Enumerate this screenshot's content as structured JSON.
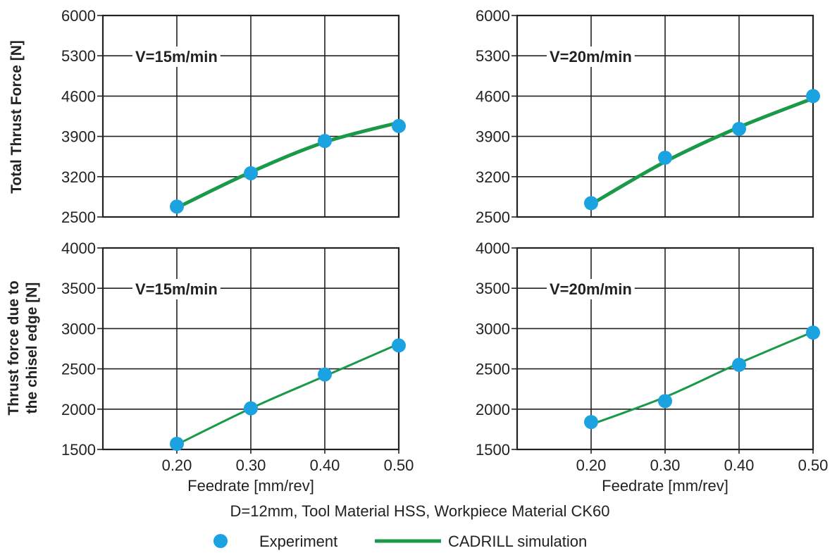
{
  "colors": {
    "marker": "#1aa3e0",
    "line": "#1a9a48",
    "frame": "#222222",
    "grid": "#222222"
  },
  "shared": {
    "xlabel": "Feedrate [mm/rev]",
    "caption": "D=12mm, Tool Material HSS, Workpiece Material CK60",
    "legend": {
      "experiment_label": "Experiment",
      "simulation_label": "CADRILL simulation"
    },
    "row_labels": {
      "top": [
        "Total Thrust Force [N]"
      ],
      "bottom": [
        "Thrust force due to",
        "the chisel edge [N]"
      ]
    }
  },
  "chart_data": [
    {
      "type": "line",
      "annotation": "V=15m/min",
      "xlim": [
        0.1,
        0.5
      ],
      "ylim": [
        2500,
        6000
      ],
      "xticks": [
        "0.20",
        "0.30",
        "0.40",
        "0.50"
      ],
      "xtick_values": [
        0.2,
        0.3,
        0.4,
        0.5
      ],
      "yticks": [
        "2500",
        "3200",
        "3900",
        "4600",
        "5300",
        "6000"
      ],
      "ytick_values": [
        2500,
        3200,
        3900,
        4600,
        5300,
        6000
      ],
      "show_xticks": false,
      "experiment": {
        "x": [
          0.2,
          0.3,
          0.4,
          0.5
        ],
        "y": [
          2680,
          3260,
          3820,
          4080
        ]
      },
      "simulation": {
        "x": [
          0.2,
          0.3,
          0.4,
          0.5
        ],
        "y": [
          2660,
          3280,
          3800,
          4140
        ]
      },
      "simulation_stroke": 5
    },
    {
      "type": "line",
      "annotation": "V=20m/min",
      "xlim": [
        0.1,
        0.5
      ],
      "ylim": [
        2500,
        6000
      ],
      "xticks": [
        "0.20",
        "0.30",
        "0.40",
        "0.50"
      ],
      "xtick_values": [
        0.2,
        0.3,
        0.4,
        0.5
      ],
      "yticks": [
        "2500",
        "3200",
        "3900",
        "4600",
        "5300",
        "6000"
      ],
      "ytick_values": [
        2500,
        3200,
        3900,
        4600,
        5300,
        6000
      ],
      "show_xticks": false,
      "experiment": {
        "x": [
          0.2,
          0.3,
          0.4,
          0.5
        ],
        "y": [
          2740,
          3530,
          4030,
          4600
        ]
      },
      "simulation": {
        "x": [
          0.2,
          0.3,
          0.4,
          0.5
        ],
        "y": [
          2720,
          3460,
          4060,
          4560
        ]
      },
      "simulation_stroke": 5
    },
    {
      "type": "line",
      "annotation": "V=15m/min",
      "xlim": [
        0.1,
        0.5
      ],
      "ylim": [
        1500,
        4000
      ],
      "xticks": [
        "0.20",
        "0.30",
        "0.40",
        "0.50"
      ],
      "xtick_values": [
        0.2,
        0.3,
        0.4,
        0.5
      ],
      "yticks": [
        "1500",
        "2000",
        "2500",
        "3000",
        "3500",
        "4000"
      ],
      "ytick_values": [
        1500,
        2000,
        2500,
        3000,
        3500,
        4000
      ],
      "show_xticks": true,
      "experiment": {
        "x": [
          0.2,
          0.3,
          0.4,
          0.5
        ],
        "y": [
          1570,
          2010,
          2430,
          2790
        ]
      },
      "simulation": {
        "x": [
          0.2,
          0.3,
          0.4,
          0.5
        ],
        "y": [
          1560,
          2010,
          2410,
          2810
        ]
      },
      "simulation_stroke": 3
    },
    {
      "type": "line",
      "annotation": "V=20m/min",
      "xlim": [
        0.1,
        0.5
      ],
      "ylim": [
        1500,
        4000
      ],
      "xticks": [
        "0.20",
        "0.30",
        "0.40",
        "0.50"
      ],
      "xtick_values": [
        0.2,
        0.3,
        0.4,
        0.5
      ],
      "yticks": [
        "1500",
        "2000",
        "2500",
        "3000",
        "3500",
        "4000"
      ],
      "ytick_values": [
        1500,
        2000,
        2500,
        3000,
        3500,
        4000
      ],
      "show_xticks": true,
      "experiment": {
        "x": [
          0.2,
          0.3,
          0.4,
          0.5
        ],
        "y": [
          1840,
          2100,
          2550,
          2950
        ]
      },
      "simulation": {
        "x": [
          0.2,
          0.3,
          0.4,
          0.5
        ],
        "y": [
          1810,
          2150,
          2570,
          2960
        ]
      },
      "simulation_stroke": 3
    }
  ]
}
